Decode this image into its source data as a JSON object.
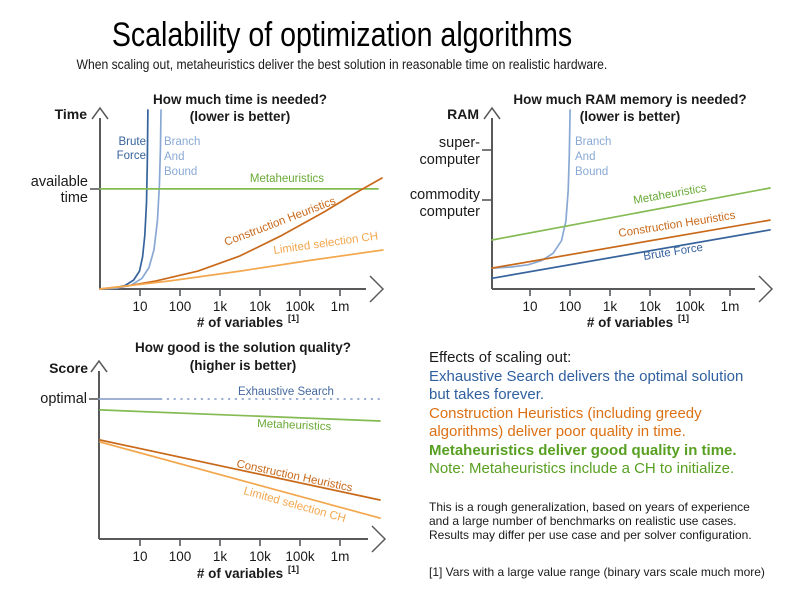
{
  "title": "Scalability of optimization algorithms",
  "subtitle": "When scaling out, metaheuristics deliver the best solution in reasonable time on realistic hardware.",
  "x_ticks": [
    "10",
    "100",
    "1k",
    "10k",
    "100k",
    "1m"
  ],
  "x_label": "# of variables",
  "x_label_sup": "[1]",
  "colors": {
    "axis_gray": "#58595b",
    "dark_blue": "#37639c",
    "light_blue": "#89a9d4",
    "exhaustive_line_blue": "#92a8cc",
    "exhaustive_label_blue": "#45689e",
    "green_line": "#84bb53",
    "green_label": "#69aa35",
    "dark_orange": "#c96a1b",
    "light_orange": "#f3a74e",
    "effects_blue": "#2f5f9e",
    "effects_orange": "#dc7014",
    "effects_green": "#58a022",
    "text_dark": "#1a1a1a"
  },
  "charts": {
    "time": {
      "title1": "How much time is needed?",
      "title2": "(lower is better)",
      "y_name": "Time",
      "ytick": [
        "available",
        "time"
      ],
      "labels": {
        "bf1": "Brute",
        "bf2": "Force",
        "bnb1": "Branch",
        "bnb2": "And",
        "bnb3": "Bound",
        "meta": "Metaheuristics",
        "ch": "Construction Heuristics",
        "lsch": "Limited selection CH"
      }
    },
    "ram": {
      "title1": "How much RAM memory is needed?",
      "title2": "(lower is better)",
      "y_name": "RAM",
      "ytick1": [
        "super-",
        "computer"
      ],
      "ytick2": [
        "commodity",
        "computer"
      ],
      "labels": {
        "bnb1": "Branch",
        "bnb2": "And",
        "bnb3": "Bound",
        "meta": "Metaheuristics",
        "ch": "Construction Heuristics",
        "bf": "Brute Force"
      }
    },
    "score": {
      "title1": "How good is the solution quality?",
      "title2": "(higher is better)",
      "y_name": "Score",
      "ytick": [
        "optimal"
      ],
      "labels": {
        "es": "Exhaustive Search",
        "meta": "Metaheuristics",
        "ch": "Construction Heuristics",
        "lsch": "Limited selection CH"
      }
    }
  },
  "effects": {
    "heading": "Effects of scaling out:",
    "lines": [
      {
        "text": "Exhaustive Search delivers the optimal solution",
        "color": "blue",
        "bold": false
      },
      {
        "text": "but takes forever.",
        "color": "blue",
        "bold": false
      },
      {
        "text": "Construction Heuristics (including greedy",
        "color": "orange",
        "bold": false
      },
      {
        "text": "algorithms) deliver poor quality in time.",
        "color": "orange",
        "bold": false
      },
      {
        "text": "Metaheuristics deliver good quality in time.",
        "color": "green",
        "bold": true
      },
      {
        "text": "Note: Metaheuristics include a CH to initialize.",
        "color": "green",
        "bold": false
      }
    ]
  },
  "disclaimer_lines": [
    "This is a rough generalization, based on years of experience",
    "and a large number of benchmarks on realistic use cases.",
    "Results may differ per use case and per solver configuration."
  ],
  "footnote": "[1] Vars with a large value range (binary vars scale much more)",
  "chart_data": [
    {
      "type": "line",
      "title": "How much time is needed? (lower is better)",
      "xlabel": "# of variables [1]",
      "ylabel": "Time",
      "x_scale": "log",
      "x_tick_labels": [
        "10",
        "100",
        "1k",
        "10k",
        "100k",
        "1m"
      ],
      "y_tick_labels": [
        "available time"
      ],
      "y_axis": "qualitative (no numeric scale); points_frac are [x,y] fractions of plot area, available time = 0.56",
      "legend": "inline labels on curves",
      "series": [
        {
          "name": "Brute Force",
          "color": "#37639c",
          "description": "time explodes to infinity around ~15 variables",
          "points_frac": [
            [
              0,
              0
            ],
            [
              0.05,
              0.005
            ],
            [
              0.09,
              0.02
            ],
            [
              0.12,
              0.05
            ],
            [
              0.141,
              0.1
            ],
            [
              0.152,
              0.18
            ],
            [
              0.16,
              0.3
            ],
            [
              0.166,
              0.48
            ],
            [
              0.169,
              0.7
            ],
            [
              0.171,
              1.0
            ]
          ]
        },
        {
          "name": "Branch And Bound",
          "color": "#89a9d4",
          "description": "time explodes to infinity around ~30 variables",
          "points_frac": [
            [
              0,
              0
            ],
            [
              0.06,
              0.005
            ],
            [
              0.11,
              0.02
            ],
            [
              0.15,
              0.06
            ],
            [
              0.175,
              0.12
            ],
            [
              0.193,
              0.22
            ],
            [
              0.205,
              0.38
            ],
            [
              0.212,
              0.58
            ],
            [
              0.216,
              0.8
            ],
            [
              0.218,
              1.0
            ]
          ]
        },
        {
          "name": "Metaheuristics",
          "color": "#84bb53",
          "w": 2.1,
          "description": "constant at the available time budget for any problem size",
          "points_frac": [
            [
              0,
              0.559
            ],
            [
              0.993,
              0.559
            ]
          ]
        },
        {
          "name": "Construction Heuristics",
          "color": "#c96a1b",
          "description": "grows steadily, exceeds available time beyond ~2m variables",
          "points_frac": [
            [
              0,
              0
            ],
            [
              0.1,
              0.018
            ],
            [
              0.2,
              0.045
            ],
            [
              0.35,
              0.1
            ],
            [
              0.5,
              0.185
            ],
            [
              0.65,
              0.3
            ],
            [
              0.8,
              0.43
            ],
            [
              0.9,
              0.525
            ],
            [
              1.007,
              0.62
            ]
          ]
        },
        {
          "name": "Limited selection CH",
          "color": "#f3a74e",
          "description": "grows slowly, stays well under available time",
          "points_frac": [
            [
              0,
              0
            ],
            [
              0.25,
              0.045
            ],
            [
              0.5,
              0.1
            ],
            [
              0.75,
              0.16
            ],
            [
              1.01,
              0.218
            ]
          ]
        }
      ]
    },
    {
      "type": "line",
      "title": "How much RAM memory is needed? (lower is better)",
      "xlabel": "# of variables [1]",
      "ylabel": "RAM",
      "x_scale": "log",
      "x_tick_labels": [
        "10",
        "100",
        "1k",
        "10k",
        "100k",
        "1m"
      ],
      "y_tick_labels": [
        "super-computer",
        "commodity computer"
      ],
      "y_axis": "qualitative; super-computer tick = 0.78, commodity computer tick = 0.50 of plot height",
      "legend": "inline labels on curves",
      "series": [
        {
          "name": "Branch And Bound",
          "color": "#89a9d4",
          "description": "RAM explodes past super-computer level around ~100 variables",
          "points_frac": [
            [
              0,
              0.117
            ],
            [
              0.07,
              0.123
            ],
            [
              0.13,
              0.135
            ],
            [
              0.18,
              0.16
            ],
            [
              0.22,
              0.2
            ],
            [
              0.25,
              0.27
            ],
            [
              0.266,
              0.38
            ],
            [
              0.274,
              0.55
            ],
            [
              0.278,
              0.75
            ],
            [
              0.281,
              1.0
            ]
          ]
        },
        {
          "name": "Metaheuristics",
          "color": "#84bb53",
          "description": "modest linear growth, stays near commodity computer level",
          "points_frac": [
            [
              0,
              0.274
            ],
            [
              1,
              0.564
            ]
          ]
        },
        {
          "name": "Construction Heuristics",
          "color": "#c96a1b",
          "description": "modest linear growth, below Metaheuristics",
          "points_frac": [
            [
              0,
              0.117
            ],
            [
              1,
              0.385
            ]
          ]
        },
        {
          "name": "Brute Force",
          "color": "#37639c",
          "description": "lowest RAM usage, modest linear growth",
          "points_frac": [
            [
              0,
              0.06
            ],
            [
              1,
              0.33
            ]
          ]
        }
      ]
    },
    {
      "type": "line",
      "title": "How good is the solution quality? (higher is better)",
      "xlabel": "# of variables [1]",
      "ylabel": "Score",
      "x_scale": "log",
      "x_tick_labels": [
        "10",
        "100",
        "1k",
        "10k",
        "100k",
        "1m"
      ],
      "y_tick_labels": [
        "optimal"
      ],
      "y_axis": "qualitative; optimal = 0.78 of plot height; dashed segment = theoretical (takes forever)",
      "legend": "inline labels on curves",
      "series": [
        {
          "name": "Exhaustive Search (solid)",
          "color": "#92a8cc",
          "w": 2,
          "description": "optimal score, achievable only up to ~30 variables",
          "points_frac": [
            [
              0,
              0.782
            ],
            [
              0.217,
              0.782
            ]
          ]
        },
        {
          "name": "Exhaustive Search (dotted)",
          "color": "#92a8cc",
          "w": 2,
          "dash": "2.2 4.6",
          "description": "optimal in theory but takes forever",
          "points_frac": [
            [
              0.217,
              0.782
            ],
            [
              1,
              0.782
            ]
          ]
        },
        {
          "name": "Metaheuristics",
          "color": "#84bb53",
          "description": "near-optimal score, degrades only slightly with scale",
          "points_frac": [
            [
              0.004,
              0.721
            ],
            [
              1,
              0.659
            ]
          ]
        },
        {
          "name": "Construction Heuristics",
          "color": "#c96a1b",
          "description": "mediocre score, degrades with scale",
          "points_frac": [
            [
              0.004,
              0.553
            ],
            [
              1,
              0.218
            ]
          ]
        },
        {
          "name": "Limited selection CH",
          "color": "#f3a74e",
          "description": "lowest score, degrades fastest with scale",
          "points_frac": [
            [
              0.004,
              0.542
            ],
            [
              1,
              0.117
            ]
          ]
        }
      ]
    }
  ]
}
